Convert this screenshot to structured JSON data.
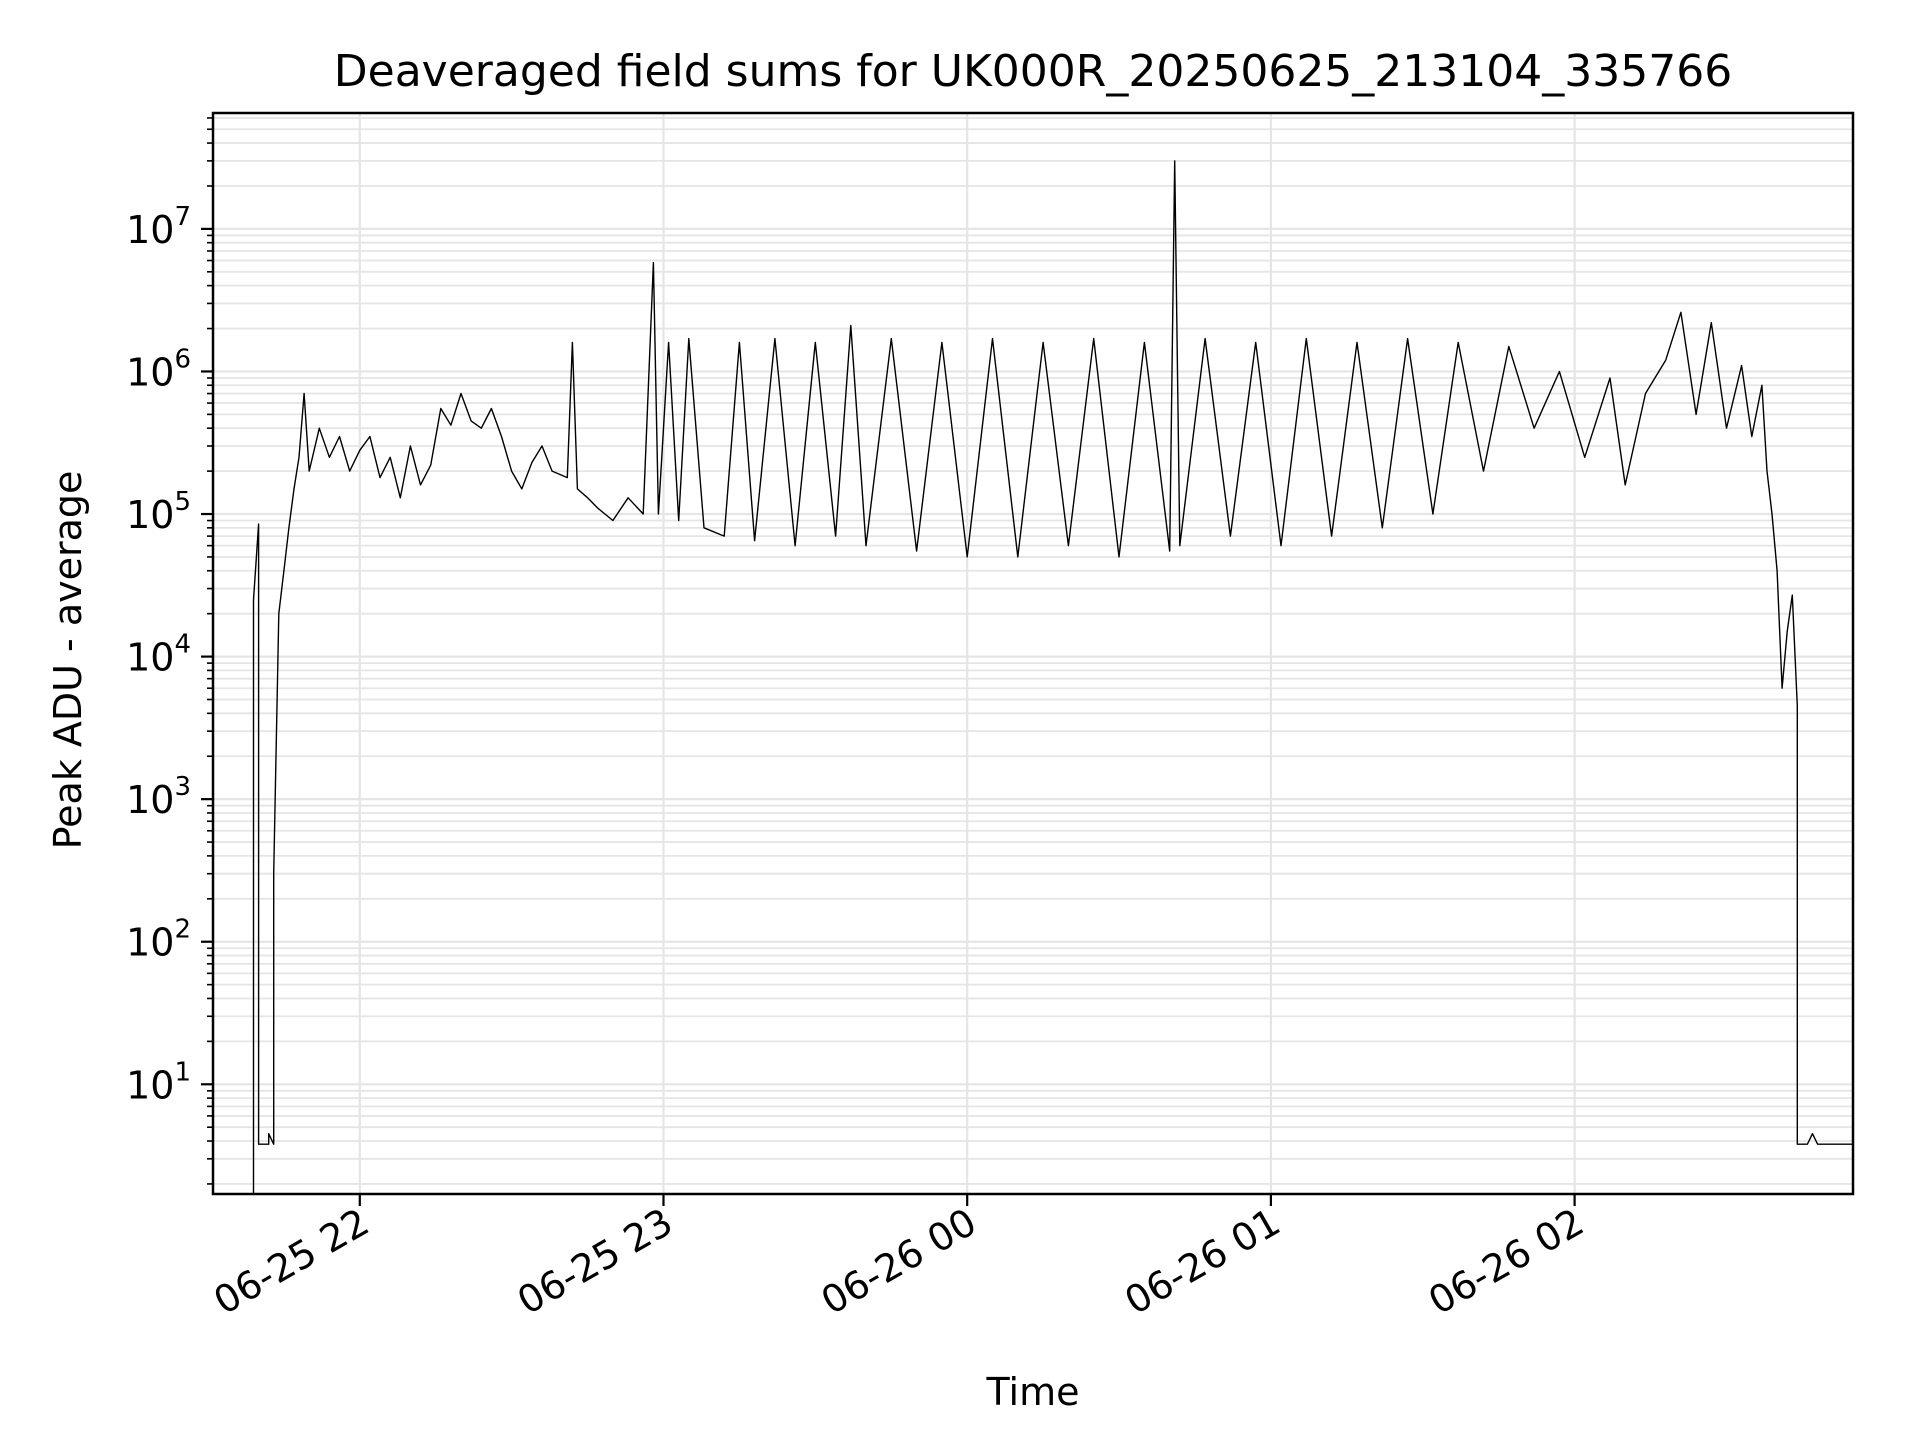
{
  "chart_data": {
    "type": "line",
    "title": "Deaveraged field sums for UK000R_20250625_213104_335766",
    "xlabel": "Time",
    "ylabel": "Peak ADU - average",
    "x_ticks": [
      "06-25 22",
      "06-25 23",
      "06-26 00",
      "06-26 01",
      "06-26 02"
    ],
    "y_ticks": [
      {
        "base": "10",
        "exp": "1",
        "value": 10
      },
      {
        "base": "10",
        "exp": "2",
        "value": 100
      },
      {
        "base": "10",
        "exp": "3",
        "value": 1000
      },
      {
        "base": "10",
        "exp": "4",
        "value": 10000
      },
      {
        "base": "10",
        "exp": "5",
        "value": 100000
      },
      {
        "base": "10",
        "exp": "6",
        "value": 1000000
      },
      {
        "base": "10",
        "exp": "7",
        "value": 10000000
      }
    ],
    "y_scale": "log",
    "ylim": [
      1.7,
      65000000
    ],
    "xlim": [
      "2025-06-25 21:31",
      "2025-06-26 02:55"
    ],
    "grid": true,
    "line_color": "#000000",
    "grid_color": "#e5e5e5",
    "series": [
      {
        "values": [
          [
            "2025-06-25 21:39",
            1.7
          ],
          [
            "2025-06-25 21:39",
            25000
          ],
          [
            "2025-06-25 21:40",
            85000
          ],
          [
            "2025-06-25 21:40",
            3.8
          ],
          [
            "2025-06-25 21:42",
            3.8
          ],
          [
            "2025-06-25 21:42",
            4.5
          ],
          [
            "2025-06-25 21:43",
            3.8
          ],
          [
            "2025-06-25 21:43",
            300
          ],
          [
            "2025-06-25 21:44",
            20000
          ],
          [
            "2025-06-25 21:45",
            40000
          ],
          [
            "2025-06-25 21:46",
            80000
          ],
          [
            "2025-06-25 21:47",
            150000
          ],
          [
            "2025-06-25 21:48",
            250000
          ],
          [
            "2025-06-25 21:49",
            700000
          ],
          [
            "2025-06-25 21:50",
            200000
          ],
          [
            "2025-06-25 21:52",
            400000
          ],
          [
            "2025-06-25 21:54",
            250000
          ],
          [
            "2025-06-25 21:56",
            350000
          ],
          [
            "2025-06-25 21:58",
            200000
          ],
          [
            "2025-06-25 22:00",
            280000
          ],
          [
            "2025-06-25 22:02",
            350000
          ],
          [
            "2025-06-25 22:04",
            180000
          ],
          [
            "2025-06-25 22:06",
            250000
          ],
          [
            "2025-06-25 22:08",
            130000
          ],
          [
            "2025-06-25 22:10",
            300000
          ],
          [
            "2025-06-25 22:12",
            160000
          ],
          [
            "2025-06-25 22:14",
            220000
          ],
          [
            "2025-06-25 22:16",
            550000
          ],
          [
            "2025-06-25 22:18",
            420000
          ],
          [
            "2025-06-25 22:20",
            700000
          ],
          [
            "2025-06-25 22:22",
            450000
          ],
          [
            "2025-06-25 22:24",
            400000
          ],
          [
            "2025-06-25 22:26",
            550000
          ],
          [
            "2025-06-25 22:28",
            350000
          ],
          [
            "2025-06-25 22:30",
            200000
          ],
          [
            "2025-06-25 22:32",
            150000
          ],
          [
            "2025-06-25 22:34",
            230000
          ],
          [
            "2025-06-25 22:36",
            300000
          ],
          [
            "2025-06-25 22:38",
            200000
          ],
          [
            "2025-06-25 22:41",
            180000
          ],
          [
            "2025-06-25 22:42",
            1600000
          ],
          [
            "2025-06-25 22:43",
            150000
          ],
          [
            "2025-06-25 22:45",
            130000
          ],
          [
            "2025-06-25 22:47",
            110000
          ],
          [
            "2025-06-25 22:50",
            90000
          ],
          [
            "2025-06-25 22:53",
            130000
          ],
          [
            "2025-06-25 22:56",
            100000
          ],
          [
            "2025-06-25 22:58",
            5800000
          ],
          [
            "2025-06-25 22:59",
            100000
          ],
          [
            "2025-06-25 23:01",
            1600000
          ],
          [
            "2025-06-25 23:03",
            90000
          ],
          [
            "2025-06-25 23:05",
            1700000
          ],
          [
            "2025-06-25 23:08",
            80000
          ],
          [
            "2025-06-25 23:12",
            70000
          ],
          [
            "2025-06-25 23:15",
            1600000
          ],
          [
            "2025-06-25 23:18",
            65000
          ],
          [
            "2025-06-25 23:22",
            1700000
          ],
          [
            "2025-06-25 23:26",
            60000
          ],
          [
            "2025-06-25 23:30",
            1600000
          ],
          [
            "2025-06-25 23:34",
            70000
          ],
          [
            "2025-06-25 23:37",
            2100000
          ],
          [
            "2025-06-25 23:40",
            60000
          ],
          [
            "2025-06-25 23:45",
            1700000
          ],
          [
            "2025-06-25 23:50",
            55000
          ],
          [
            "2025-06-25 23:55",
            1600000
          ],
          [
            "2025-06-26 00:00",
            50000
          ],
          [
            "2025-06-26 00:05",
            1700000
          ],
          [
            "2025-06-26 00:10",
            50000
          ],
          [
            "2025-06-26 00:15",
            1600000
          ],
          [
            "2025-06-26 00:20",
            60000
          ],
          [
            "2025-06-26 00:25",
            1700000
          ],
          [
            "2025-06-26 00:30",
            50000
          ],
          [
            "2025-06-26 00:35",
            1600000
          ],
          [
            "2025-06-26 00:40",
            55000
          ],
          [
            "2025-06-26 00:41",
            30000000
          ],
          [
            "2025-06-26 00:42",
            60000
          ],
          [
            "2025-06-26 00:47",
            1700000
          ],
          [
            "2025-06-26 00:52",
            70000
          ],
          [
            "2025-06-26 00:57",
            1600000
          ],
          [
            "2025-06-26 01:02",
            60000
          ],
          [
            "2025-06-26 01:07",
            1700000
          ],
          [
            "2025-06-26 01:12",
            70000
          ],
          [
            "2025-06-26 01:17",
            1600000
          ],
          [
            "2025-06-26 01:22",
            80000
          ],
          [
            "2025-06-26 01:27",
            1700000
          ],
          [
            "2025-06-26 01:32",
            100000
          ],
          [
            "2025-06-26 01:37",
            1600000
          ],
          [
            "2025-06-26 01:42",
            200000
          ],
          [
            "2025-06-26 01:47",
            1500000
          ],
          [
            "2025-06-26 01:52",
            400000
          ],
          [
            "2025-06-26 01:57",
            1000000
          ],
          [
            "2025-06-26 02:02",
            250000
          ],
          [
            "2025-06-26 02:07",
            900000
          ],
          [
            "2025-06-26 02:10",
            160000
          ],
          [
            "2025-06-26 02:14",
            700000
          ],
          [
            "2025-06-26 02:18",
            1200000
          ],
          [
            "2025-06-26 02:21",
            2600000
          ],
          [
            "2025-06-26 02:24",
            500000
          ],
          [
            "2025-06-26 02:27",
            2200000
          ],
          [
            "2025-06-26 02:30",
            400000
          ],
          [
            "2025-06-26 02:33",
            1100000
          ],
          [
            "2025-06-26 02:35",
            350000
          ],
          [
            "2025-06-26 02:37",
            800000
          ],
          [
            "2025-06-26 02:38",
            200000
          ],
          [
            "2025-06-26 02:39",
            100000
          ],
          [
            "2025-06-26 02:40",
            40000
          ],
          [
            "2025-06-26 02:41",
            6000
          ],
          [
            "2025-06-26 02:42",
            15000
          ],
          [
            "2025-06-26 02:43",
            27000
          ],
          [
            "2025-06-26 02:44",
            4500
          ],
          [
            "2025-06-26 02:44",
            3.8
          ],
          [
            "2025-06-26 02:46",
            3.8
          ],
          [
            "2025-06-26 02:47",
            4.5
          ],
          [
            "2025-06-26 02:48",
            3.8
          ],
          [
            "2025-06-26 02:55",
            3.8
          ]
        ]
      }
    ]
  }
}
